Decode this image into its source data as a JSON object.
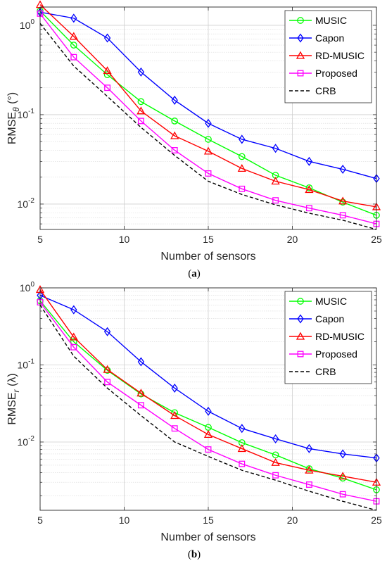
{
  "chart_data": [
    {
      "type": "line",
      "panel_label": "(a)",
      "xlabel": "Number of sensors",
      "ylabel_main": "RMSE",
      "ylabel_sub": "θ",
      "ylabel_unit": " (°)",
      "yscale": "log",
      "xlim": [
        5,
        25
      ],
      "ylim": [
        0.0052,
        1.6
      ],
      "x_ticks": [
        5,
        10,
        15,
        20,
        25
      ],
      "y_ticks": [
        {
          "value": 1,
          "base": "10",
          "exp": "0"
        },
        {
          "value": 0.1,
          "base": "10",
          "exp": "-1"
        },
        {
          "value": 0.01,
          "base": "10",
          "exp": "-2"
        }
      ],
      "grid": true,
      "legend_position": "top-right",
      "x": [
        5,
        7,
        9,
        11,
        13,
        15,
        17,
        19,
        21,
        23,
        25
      ],
      "series": [
        {
          "name": "MUSIC",
          "color": "#00ff00",
          "marker": "circle",
          "dashed": false,
          "values": [
            1.45,
            0.6,
            0.28,
            0.14,
            0.085,
            0.053,
            0.034,
            0.021,
            0.0152,
            0.0105,
            0.0075
          ]
        },
        {
          "name": "Capon",
          "color": "#0000ff",
          "marker": "diamond",
          "dashed": false,
          "values": [
            1.4,
            1.2,
            0.72,
            0.3,
            0.145,
            0.08,
            0.053,
            0.042,
            0.03,
            0.0245,
            0.0193
          ]
        },
        {
          "name": "RD-MUSIC",
          "color": "#ff0000",
          "marker": "triangle",
          "dashed": false,
          "values": [
            1.7,
            0.75,
            0.31,
            0.11,
            0.058,
            0.039,
            0.025,
            0.018,
            0.0145,
            0.0108,
            0.0093
          ]
        },
        {
          "name": "Proposed",
          "color": "#ff00ff",
          "marker": "square",
          "dashed": false,
          "values": [
            1.35,
            0.44,
            0.2,
            0.085,
            0.04,
            0.022,
            0.0148,
            0.011,
            0.009,
            0.0075,
            0.006
          ]
        },
        {
          "name": "CRB",
          "color": "#000000",
          "marker": "none",
          "dashed": true,
          "values": [
            1.05,
            0.35,
            0.16,
            0.072,
            0.035,
            0.018,
            0.0128,
            0.0098,
            0.0079,
            0.0066,
            0.0052
          ]
        }
      ]
    },
    {
      "type": "line",
      "panel_label": "(b)",
      "xlabel": "Number of sensors",
      "ylabel_main": "RMSE",
      "ylabel_sub": "r",
      "ylabel_unit": " (λ)",
      "yscale": "log",
      "xlim": [
        5,
        25
      ],
      "ylim": [
        0.0013,
        1.0
      ],
      "x_ticks": [
        5,
        10,
        15,
        20,
        25
      ],
      "y_ticks": [
        {
          "value": 1,
          "base": "10",
          "exp": "0"
        },
        {
          "value": 0.1,
          "base": "10",
          "exp": "-1"
        },
        {
          "value": 0.01,
          "base": "10",
          "exp": "-2"
        }
      ],
      "grid": true,
      "legend_position": "top-right",
      "x": [
        5,
        7,
        9,
        11,
        13,
        15,
        17,
        19,
        21,
        23,
        25
      ],
      "series": [
        {
          "name": "MUSIC",
          "color": "#00ff00",
          "marker": "circle",
          "dashed": false,
          "values": [
            0.68,
            0.2,
            0.085,
            0.042,
            0.024,
            0.0155,
            0.0098,
            0.0068,
            0.0045,
            0.0034,
            0.0024
          ]
        },
        {
          "name": "Capon",
          "color": "#0000ff",
          "marker": "diamond",
          "dashed": false,
          "values": [
            0.8,
            0.52,
            0.27,
            0.11,
            0.05,
            0.025,
            0.015,
            0.011,
            0.0082,
            0.007,
            0.0062
          ]
        },
        {
          "name": "RD-MUSIC",
          "color": "#ff0000",
          "marker": "triangle",
          "dashed": false,
          "values": [
            0.95,
            0.23,
            0.087,
            0.043,
            0.022,
            0.0125,
            0.0082,
            0.0054,
            0.0043,
            0.0036,
            0.003
          ]
        },
        {
          "name": "Proposed",
          "color": "#ff00ff",
          "marker": "square",
          "dashed": false,
          "values": [
            0.65,
            0.17,
            0.06,
            0.03,
            0.015,
            0.008,
            0.0052,
            0.0037,
            0.0028,
            0.0021,
            0.0017
          ]
        },
        {
          "name": "CRB",
          "color": "#000000",
          "marker": "none",
          "dashed": true,
          "values": [
            0.6,
            0.13,
            0.05,
            0.022,
            0.01,
            0.0065,
            0.0043,
            0.0032,
            0.0023,
            0.0017,
            0.0013
          ]
        }
      ]
    }
  ]
}
